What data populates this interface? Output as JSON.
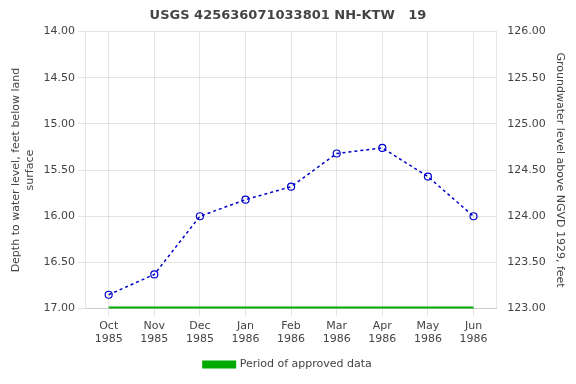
{
  "chart_data": {
    "type": "line",
    "title": "USGS 425636071033801 NH-KTW   19",
    "y_label": "Depth to water level, feet below land\nsurface",
    "y2_label": "Groundwater level above NGVD 1929, feet",
    "categories": [
      "Oct\n1985",
      "Nov\n1985",
      "Dec\n1985",
      "Jan\n1986",
      "Feb\n1986",
      "Mar\n1986",
      "Apr\n1986",
      "May\n1986",
      "Jun\n1986"
    ],
    "series": [
      {
        "color": "#0000cc",
        "marker": "circle",
        "line_style": "dotted",
        "values": [
          16.85,
          16.63,
          16.0,
          15.82,
          15.68,
          15.32,
          15.26,
          15.57,
          16.0
        ]
      },
      {
        "name": "Period of approved data",
        "color": "#00aa00",
        "marker": "none",
        "line_style": "solid",
        "values": [
          17.0,
          17.0,
          17.0,
          17.0,
          17.0,
          17.0,
          17.0,
          17.0,
          17.0
        ]
      }
    ],
    "ylim": [
      17.0,
      14.0
    ],
    "yticks": [
      {
        "value": 14.0,
        "label": "14.00"
      },
      {
        "value": 14.5,
        "label": "14.50"
      },
      {
        "value": 15.0,
        "label": "15.00"
      },
      {
        "value": 15.5,
        "label": "15.50"
      },
      {
        "value": 16.0,
        "label": "16.00"
      },
      {
        "value": 16.5,
        "label": "16.50"
      },
      {
        "value": 17.0,
        "label": "17.00"
      }
    ],
    "y2lim": [
      123.0,
      126.0
    ],
    "y2ticks": [
      {
        "value": 123.0,
        "label": "123.00"
      },
      {
        "value": 123.5,
        "label": "123.50"
      },
      {
        "value": 124.0,
        "label": "124.00"
      },
      {
        "value": 124.5,
        "label": "124.50"
      },
      {
        "value": 125.0,
        "label": "125.00"
      },
      {
        "value": 125.5,
        "label": "125.50"
      },
      {
        "value": 126.0,
        "label": "126.00"
      }
    ],
    "grid": true,
    "legend": "bottom"
  }
}
